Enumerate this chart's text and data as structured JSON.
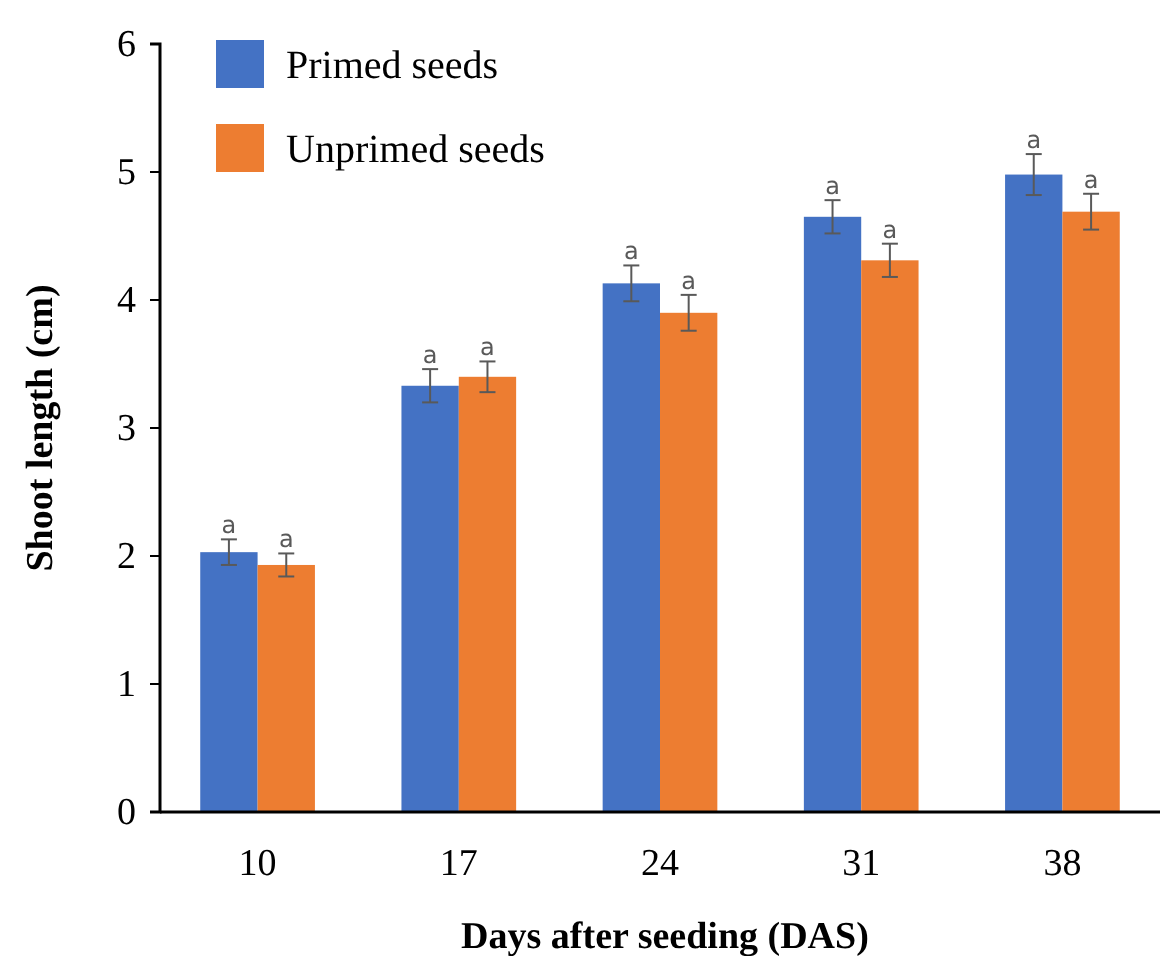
{
  "chart_data": {
    "type": "bar",
    "xlabel": "Days after seeding (DAS)",
    "ylabel": "Shoot length (cm)",
    "categories": [
      "10",
      "17",
      "24",
      "31",
      "38"
    ],
    "series": [
      {
        "name": "Primed seeds",
        "color": "#4472c4",
        "values": [
          2.03,
          3.33,
          4.13,
          4.65,
          4.98
        ],
        "errors": [
          0.1,
          0.13,
          0.14,
          0.13,
          0.16
        ]
      },
      {
        "name": "Unprimed seeds",
        "color": "#ed7d31",
        "values": [
          1.93,
          3.4,
          3.9,
          4.31,
          4.69
        ],
        "errors": [
          0.09,
          0.12,
          0.14,
          0.13,
          0.14
        ]
      }
    ],
    "ylim": [
      0,
      6
    ],
    "yticks": [
      0,
      1,
      2,
      3,
      4,
      5,
      6
    ],
    "grid": false,
    "legend": "top left",
    "annotations": [
      "a",
      "a",
      "a",
      "a",
      "a",
      "a",
      "a",
      "a",
      "a",
      "a"
    ]
  }
}
